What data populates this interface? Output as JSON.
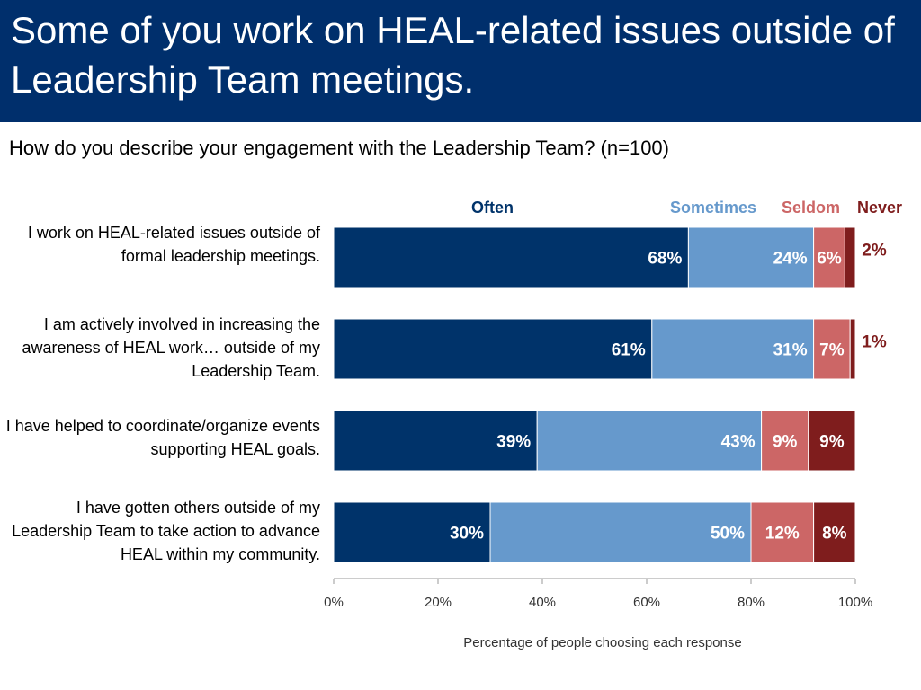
{
  "slide": {
    "title": "Some of you work on HEAL-related issues outside of Leadership Team meetings.",
    "question": "How do you describe your engagement with the Leadership Team? (n=100)"
  },
  "colors": {
    "header_bg": "#002f6c",
    "often": "#00336a",
    "sometimes": "#6699cc",
    "seldom": "#cc6666",
    "never": "#7f1d1d"
  },
  "chart_data": {
    "type": "bar",
    "orientation": "horizontal",
    "stacked": true,
    "categories": [
      "I work on HEAL-related issues outside of formal leadership meetings.",
      "I am actively involved in increasing the awareness of HEAL work… outside of my Leadership Team.",
      "I have helped to coordinate/organize events supporting HEAL goals.",
      "I have gotten others outside of my Leadership Team to take action to advance HEAL within my community."
    ],
    "series": [
      {
        "name": "Often",
        "values": [
          68,
          61,
          39,
          30
        ]
      },
      {
        "name": "Sometimes",
        "values": [
          24,
          31,
          43,
          50
        ]
      },
      {
        "name": "Seldom",
        "values": [
          6,
          7,
          9,
          12
        ]
      },
      {
        "name": "Never",
        "values": [
          2,
          1,
          9,
          8
        ]
      }
    ],
    "value_labels": [
      [
        "68%",
        "24%",
        "6%",
        "2%"
      ],
      [
        "61%",
        "31%",
        "7%",
        "1%"
      ],
      [
        "39%",
        "43%",
        "9%",
        "9%"
      ],
      [
        "30%",
        "50%",
        "12%",
        "8%"
      ]
    ],
    "xlabel": "Percentage of people choosing each response",
    "xlim": [
      0,
      100
    ],
    "xticks": [
      "0%",
      "20%",
      "40%",
      "60%",
      "80%",
      "100%"
    ],
    "legend_position": "top"
  }
}
